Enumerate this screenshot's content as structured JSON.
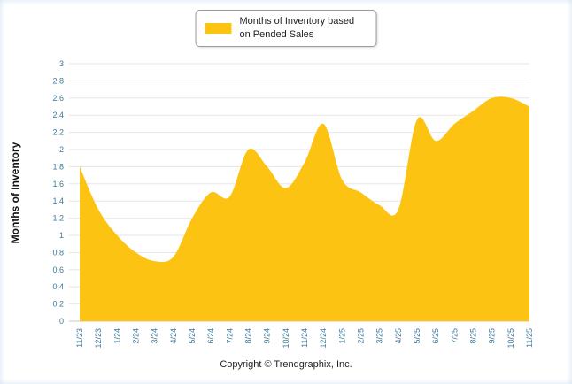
{
  "legend": {
    "swatch_color": "#FDC313"
  },
  "footer": {
    "copyright": "Copyright © Trendgraphix, Inc."
  },
  "chart_data": {
    "type": "area",
    "title": "",
    "xlabel": "",
    "ylabel": "Months of Inventory",
    "ylim": [
      0,
      3
    ],
    "ytick_step": 0.2,
    "grid": true,
    "legend_position": "top-center",
    "series_color": "#FDC313",
    "axis_label_color": "#3E7A99",
    "gridline_color": "#e6e6e6",
    "baseline_color": "#c8c8c8",
    "yticks": [
      "0",
      "0.2",
      "0.4",
      "0.6",
      "0.8",
      "1",
      "1.2",
      "1.4",
      "1.6",
      "1.8",
      "2",
      "2.2",
      "2.4",
      "2.6",
      "2.8",
      "3"
    ],
    "categories": [
      "11/23",
      "12/23",
      "1/24",
      "2/24",
      "3/24",
      "4/24",
      "5/24",
      "6/24",
      "7/24",
      "8/24",
      "9/24",
      "10/24",
      "11/24",
      "12/24",
      "1/25",
      "2/25",
      "3/25",
      "4/25",
      "5/25",
      "6/25",
      "7/25",
      "8/25",
      "9/25",
      "10/25",
      "11/25"
    ],
    "series": [
      {
        "name": "Months of Inventory based on Pended Sales",
        "values": [
          1.8,
          1.3,
          1.0,
          0.8,
          0.7,
          0.75,
          1.2,
          1.5,
          1.45,
          2.0,
          1.8,
          1.55,
          1.85,
          2.3,
          1.65,
          1.5,
          1.35,
          1.3,
          2.35,
          2.1,
          2.3,
          2.45,
          2.6,
          2.6,
          2.5
        ]
      }
    ]
  }
}
